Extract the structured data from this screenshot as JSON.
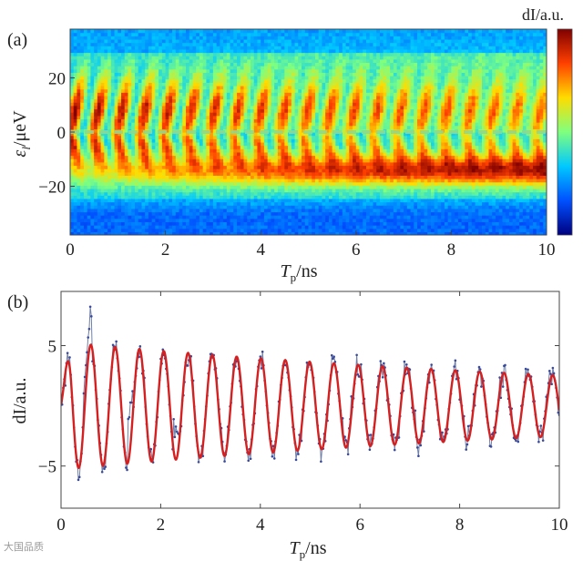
{
  "chart_data": [
    {
      "type": "heatmap",
      "panel_label": "(a)",
      "xlabel_main": "T",
      "xlabel_sub": "p",
      "xlabel_unit": "/ns",
      "ylabel_main": "ε",
      "ylabel_sub": "l",
      "ylabel_unit": "/μeV",
      "xlim": [
        0,
        10
      ],
      "ylim": [
        -38,
        38
      ],
      "xticks": [
        0,
        2,
        4,
        6,
        8,
        10
      ],
      "yticks": [
        20,
        0,
        -20
      ],
      "xtick_labels": [
        "0",
        "2",
        "4",
        "6",
        "8",
        "10"
      ],
      "ytick_labels": [
        "20",
        "0",
        "−20"
      ],
      "colorbar_title": "dI/a.u.",
      "colorbar_colors": [
        "#00007f",
        "#0050ff",
        "#00c8ff",
        "#7fff7f",
        "#ffdc00",
        "#ff4000",
        "#800000"
      ],
      "center_line_y": 0,
      "oscillation_frequency_per_ns": 2.05,
      "lower_band_center": -14,
      "lower_band_halfwidth": 6
    },
    {
      "type": "line",
      "panel_label": "(b)",
      "xlabel_main": "T",
      "xlabel_sub": "p",
      "xlabel_unit": "/ns",
      "ylabel": "dI/a.u.",
      "xlim": [
        0,
        10
      ],
      "ylim": [
        -8.5,
        9.5
      ],
      "xticks": [
        0,
        2,
        4,
        6,
        8,
        10
      ],
      "yticks": [
        5,
        -5
      ],
      "xtick_labels": [
        "0",
        "2",
        "4",
        "6",
        "8",
        "10"
      ],
      "ytick_labels": [
        "5",
        "−5"
      ],
      "series": [
        {
          "name": "data",
          "color": "#4a5a9a",
          "style": "dots-with-line"
        },
        {
          "name": "fit",
          "color": "#d42020",
          "style": "line"
        }
      ],
      "fit": {
        "amplitude": 5.3,
        "frequency_per_ns": 2.05,
        "decay_time_ns": 13.5,
        "offset": 0
      }
    }
  ],
  "watermark": "大国品质"
}
